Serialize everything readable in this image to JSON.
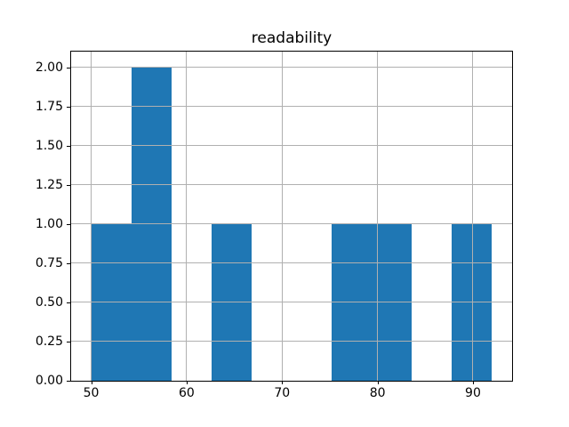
{
  "chart_data": {
    "type": "bar",
    "subtype": "histogram",
    "title": "readability",
    "xlabel": "",
    "ylabel": "",
    "bin_edges": [
      50.0,
      54.2,
      58.4,
      62.6,
      66.8,
      71.0,
      75.2,
      79.4,
      83.6,
      87.8,
      92.0
    ],
    "counts": [
      1,
      2,
      0,
      1,
      0,
      0,
      1,
      1,
      0,
      1
    ],
    "xlim": [
      47.9,
      94.1
    ],
    "ylim": [
      0,
      2.1
    ],
    "x_ticks": [
      50,
      60,
      70,
      80,
      90
    ],
    "x_tick_labels": [
      "50",
      "60",
      "70",
      "80",
      "90"
    ],
    "y_ticks": [
      0,
      0.25,
      0.5,
      0.75,
      1.0,
      1.25,
      1.5,
      1.75,
      2.0
    ],
    "y_tick_labels": [
      "0.00",
      "0.25",
      "0.50",
      "0.75",
      "1.00",
      "1.25",
      "1.50",
      "1.75",
      "2.00"
    ],
    "grid": true,
    "legend": null,
    "colors": {
      "bar": "#1f77b4",
      "grid": "#b0b0b0",
      "spine": "#000000",
      "background": "#ffffff"
    }
  }
}
